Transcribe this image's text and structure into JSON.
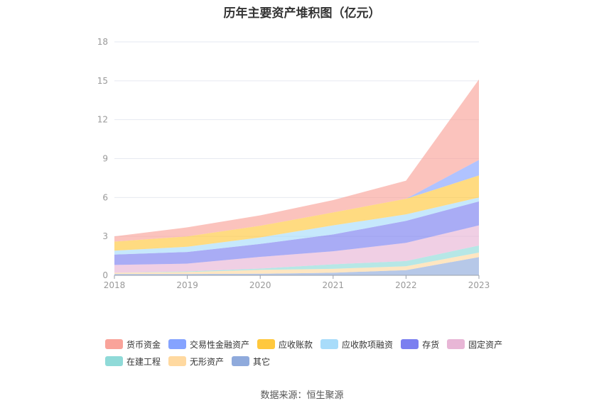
{
  "chart_data": {
    "type": "area",
    "stacked": true,
    "title": "历年主要资产堆积图（亿元）",
    "categories": [
      "2018",
      "2019",
      "2020",
      "2021",
      "2022",
      "2023"
    ],
    "ylim": [
      0,
      18
    ],
    "yticks": [
      "0",
      "3",
      "6",
      "9",
      "12",
      "15",
      "18"
    ],
    "grid": true,
    "legend_position": "bottom",
    "series": [
      {
        "name": "其它",
        "color": "#8faadc",
        "values": [
          0.1,
          0.1,
          0.12,
          0.2,
          0.4,
          1.4
        ]
      },
      {
        "name": "无形资产",
        "color": "#ffd9a0",
        "values": [
          0.1,
          0.15,
          0.3,
          0.3,
          0.3,
          0.35
        ]
      },
      {
        "name": "在建工程",
        "color": "#8fdad8",
        "values": [
          0.0,
          0.05,
          0.1,
          0.35,
          0.4,
          0.55
        ]
      },
      {
        "name": "固定资产",
        "color": "#e8b6d6",
        "values": [
          0.6,
          0.6,
          0.9,
          1.0,
          1.4,
          1.55
        ]
      },
      {
        "name": "存货",
        "color": "#7b7ff0",
        "values": [
          0.8,
          0.9,
          1.0,
          1.3,
          1.7,
          1.85
        ]
      },
      {
        "name": "应收款项融资",
        "color": "#a8dcfa",
        "values": [
          0.3,
          0.4,
          0.5,
          0.7,
          0.5,
          0.3
        ]
      },
      {
        "name": "应收账款",
        "color": "#ffc83d",
        "values": [
          0.7,
          0.8,
          0.9,
          1.0,
          1.2,
          1.7
        ]
      },
      {
        "name": "交易性金融资产",
        "color": "#85a3ff",
        "values": [
          0.0,
          0.0,
          0.0,
          0.0,
          0.0,
          1.2
        ]
      },
      {
        "name": "货币资金",
        "color": "#f9a39a",
        "values": [
          0.4,
          0.7,
          0.8,
          0.95,
          1.4,
          6.2
        ]
      }
    ],
    "legend_order": [
      "货币资金",
      "交易性金融资产",
      "应收账款",
      "应收款项融资",
      "存货",
      "固定资产",
      "在建工程",
      "无形资产",
      "其它"
    ]
  },
  "source_note": "数据来源：恒生聚源"
}
